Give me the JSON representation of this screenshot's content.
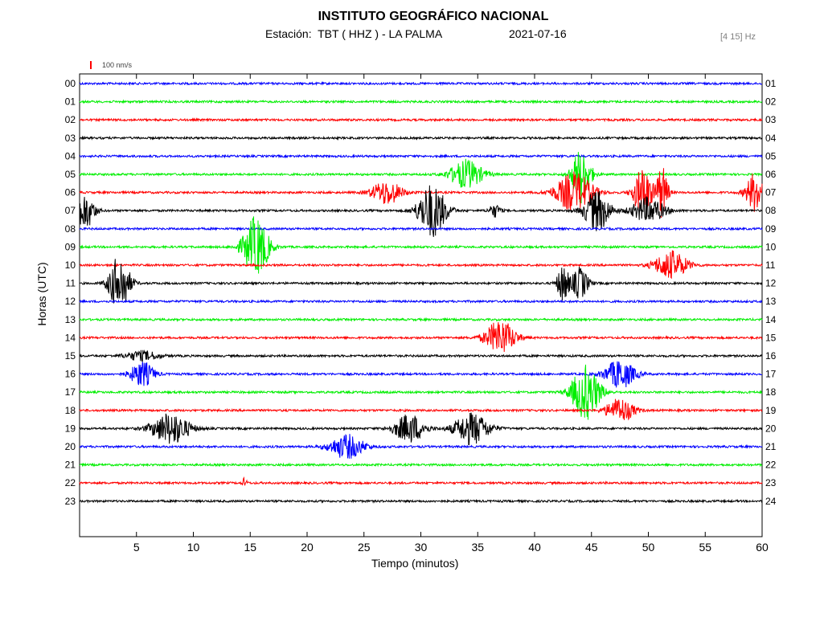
{
  "header": {
    "title": "INSTITUTO GEOGRÁFICO NACIONAL",
    "station": "Estación:  TBT ( HHZ ) - LA PALMA",
    "date": "2021-07-16",
    "filter": "[4 15] Hz"
  },
  "chart_data": {
    "type": "line",
    "title": "INSTITUTO GEOGRÁFICO NACIONAL",
    "xlabel": "Tiempo (minutos)",
    "ylabel": "Horas (UTC)",
    "xlim": [
      0,
      60
    ],
    "x_ticks": [
      "5",
      "10",
      "15",
      "20",
      "25",
      "30",
      "35",
      "40",
      "45",
      "50",
      "55",
      "60"
    ],
    "y_ticks_left": [
      "00",
      "01",
      "02",
      "03",
      "04",
      "05",
      "06",
      "07",
      "08",
      "09",
      "10",
      "11",
      "12",
      "13",
      "14",
      "15",
      "16",
      "17",
      "18",
      "19",
      "20",
      "21",
      "22",
      "23"
    ],
    "y_ticks_right": [
      "01",
      "02",
      "03",
      "04",
      "05",
      "06",
      "07",
      "08",
      "09",
      "10",
      "11",
      "12",
      "13",
      "14",
      "15",
      "16",
      "17",
      "18",
      "19",
      "20",
      "21",
      "22",
      "23",
      "24"
    ],
    "scale_label": "100 nm/s",
    "scale_color": "#ff0000",
    "color_cycle": [
      "#0000ff",
      "#00ee00",
      "#ff0000",
      "#000000"
    ],
    "grid": false,
    "series": [
      {
        "hour": 0,
        "events": []
      },
      {
        "hour": 1,
        "events": []
      },
      {
        "hour": 2,
        "events": []
      },
      {
        "hour": 3,
        "events": []
      },
      {
        "hour": 4,
        "events": []
      },
      {
        "hour": 5,
        "events": [
          {
            "t": 34.0,
            "amp": 18,
            "dur": 1.4
          },
          {
            "t": 44.1,
            "amp": 36,
            "dur": 0.8
          }
        ]
      },
      {
        "hour": 6,
        "events": [
          {
            "t": 27.0,
            "amp": 15,
            "dur": 1.3
          },
          {
            "t": 43.5,
            "amp": 25,
            "dur": 1.6
          },
          {
            "t": 49.5,
            "amp": 30,
            "dur": 0.8
          },
          {
            "t": 51.2,
            "amp": 33,
            "dur": 0.5
          },
          {
            "t": 59.4,
            "amp": 25,
            "dur": 0.8
          }
        ]
      },
      {
        "hour": 7,
        "events": [
          {
            "t": 0.5,
            "amp": 22,
            "dur": 0.8
          },
          {
            "t": 31.0,
            "amp": 34,
            "dur": 1.2
          },
          {
            "t": 36.5,
            "amp": 8,
            "dur": 0.5
          },
          {
            "t": 45.5,
            "amp": 26,
            "dur": 1.1
          },
          {
            "t": 50.0,
            "amp": 16,
            "dur": 1.4
          }
        ]
      },
      {
        "hour": 8,
        "events": []
      },
      {
        "hour": 9,
        "events": [
          {
            "t": 15.5,
            "amp": 38,
            "dur": 1.1
          }
        ]
      },
      {
        "hour": 10,
        "events": [
          {
            "t": 52.0,
            "amp": 18,
            "dur": 1.4
          }
        ]
      },
      {
        "hour": 11,
        "events": [
          {
            "t": 3.5,
            "amp": 35,
            "dur": 0.9
          },
          {
            "t": 42.5,
            "amp": 24,
            "dur": 0.5
          },
          {
            "t": 44.0,
            "amp": 20,
            "dur": 0.7
          }
        ]
      },
      {
        "hour": 12,
        "events": []
      },
      {
        "hour": 13,
        "events": []
      },
      {
        "hour": 14,
        "events": [
          {
            "t": 37.0,
            "amp": 22,
            "dur": 1.3
          }
        ]
      },
      {
        "hour": 15,
        "events": [
          {
            "t": 5.5,
            "amp": 6,
            "dur": 1.5
          }
        ]
      },
      {
        "hour": 16,
        "events": [
          {
            "t": 5.5,
            "amp": 16,
            "dur": 1.0
          },
          {
            "t": 47.5,
            "amp": 18,
            "dur": 1.3
          }
        ]
      },
      {
        "hour": 17,
        "events": [
          {
            "t": 44.5,
            "amp": 35,
            "dur": 1.2
          }
        ]
      },
      {
        "hour": 18,
        "events": [
          {
            "t": 47.5,
            "amp": 15,
            "dur": 1.2
          }
        ]
      },
      {
        "hour": 19,
        "events": [
          {
            "t": 8.0,
            "amp": 20,
            "dur": 1.6
          },
          {
            "t": 29.0,
            "amp": 18,
            "dur": 1.3
          },
          {
            "t": 34.5,
            "amp": 20,
            "dur": 1.5
          }
        ]
      },
      {
        "hour": 20,
        "events": [
          {
            "t": 23.5,
            "amp": 15,
            "dur": 1.5
          }
        ]
      },
      {
        "hour": 21,
        "events": []
      },
      {
        "hour": 22,
        "events": [
          {
            "t": 14.5,
            "amp": 6,
            "dur": 0.2
          }
        ]
      },
      {
        "hour": 23,
        "events": []
      }
    ]
  }
}
